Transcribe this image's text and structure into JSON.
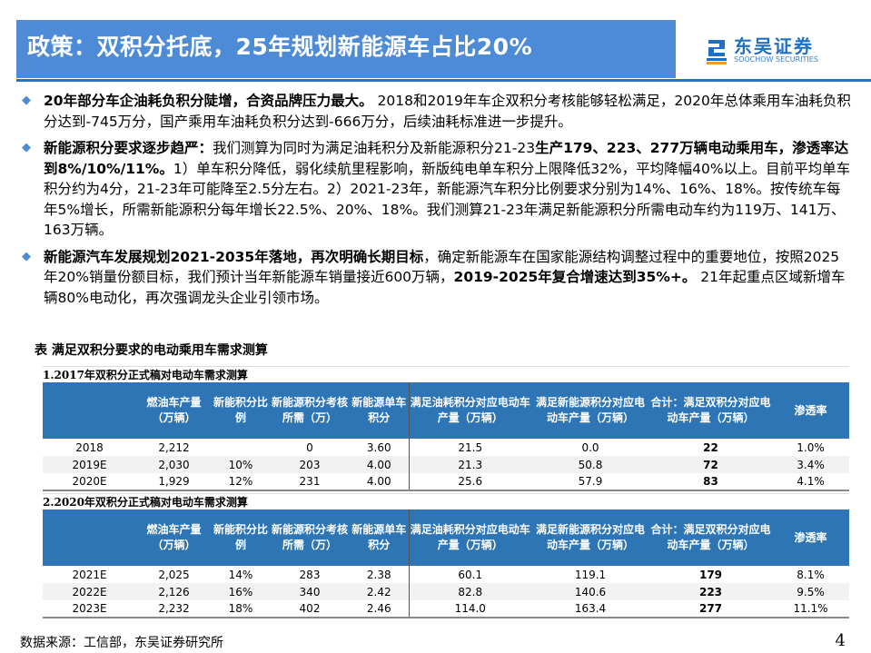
{
  "header": {
    "title": "政策：双积分托底，25年规划新能源车占比20%",
    "logo_cn": "东吴证券",
    "logo_en": "SOOCHOW SECURITIES",
    "logo_mark": "SCS"
  },
  "bullets": [
    {
      "bold": "20年部分车企油耗负积分陡增，合资品牌压力最大。",
      "text": "2018和2019年车企双积分考核能够轻松满足，2020年总体乘用车油耗负积分达到-745万分，国产乘用车油耗负积分达到-666万分，后续油耗标准进一步提升。"
    },
    {
      "bold": "新能源积分要求逐步趋严：",
      "text": "我们测算为同时为满足油耗积分及新能源积分21-23",
      "bold2": "生产179、223、277万辆电动乘用车，渗透率达到8%/10%/11%。",
      "text2": "1）单车积分降低，弱化续航里程影响，新版纯电单车积分上限降低32%，平均降幅40%以上。目前平均单车积分约为4分，21-23年可能降至2.5分左右。2）2021-23年，新能源汽车积分比例要求分别为14%、16%、18%。按传统车每年5%增长，所需新能源积分每年增长22.5%、20%、18%。我们测算21-23年满足新能源积分所需电动车约为119万、141万、163万辆。"
    },
    {
      "bold": "新能源汽车发展规划2021-2035年落地，再次明确长期目标",
      "text": "，确定新能源车在国家能源结构调整过程中的重要地位，按照2025年20%销量份额目标，我们预计当年新能源车销量接近600万辆，",
      "bold2": "2019-2025年复合增速达到35%+。",
      "text2": " 21年起重点区域新增车辆80%电动化，再次强调龙头企业引领市场。"
    }
  ],
  "table_caption": "表  满足双积分要求的电动乘用车需求测算",
  "columns": [
    "",
    "燃油车产量（万辆）",
    "新能积分比例",
    "新能源积分考核所需（万）",
    "新能源单车积分",
    "满足油耗积分对应电动车产量（万辆）",
    "满足新能源积分对应电动车产量（万辆）",
    "合计：满足双积分对应电动车产量（万辆）",
    "渗透率"
  ],
  "tables": [
    {
      "subtitle": "1.2017年双积分正式稿对电动车需求测算",
      "rows": [
        [
          "2018",
          "2,212",
          "",
          "0",
          "3.60",
          "21.5",
          "0.0",
          "22",
          "1.0%"
        ],
        [
          "2019E",
          "2,030",
          "10%",
          "203",
          "4.00",
          "21.3",
          "50.8",
          "72",
          "3.4%"
        ],
        [
          "2020E",
          "1,929",
          "12%",
          "231",
          "4.00",
          "25.6",
          "57.9",
          "83",
          "4.1%"
        ]
      ]
    },
    {
      "subtitle": "2.2020年双积分正式稿对电动车需求测算",
      "rows": [
        [
          "2021E",
          "2,025",
          "14%",
          "283",
          "2.38",
          "60.1",
          "119.1",
          "179",
          "8.1%"
        ],
        [
          "2022E",
          "2,126",
          "16%",
          "340",
          "2.42",
          "82.8",
          "140.6",
          "223",
          "9.5%"
        ],
        [
          "2023E",
          "2,232",
          "18%",
          "402",
          "2.46",
          "114.0",
          "163.4",
          "277",
          "11.1%"
        ]
      ]
    }
  ],
  "source": "数据来源：工信部，东吴证券研究所",
  "page_number": "4",
  "colors": {
    "title_bar": "#4d8bd6",
    "table_header": "#2e75b6"
  }
}
